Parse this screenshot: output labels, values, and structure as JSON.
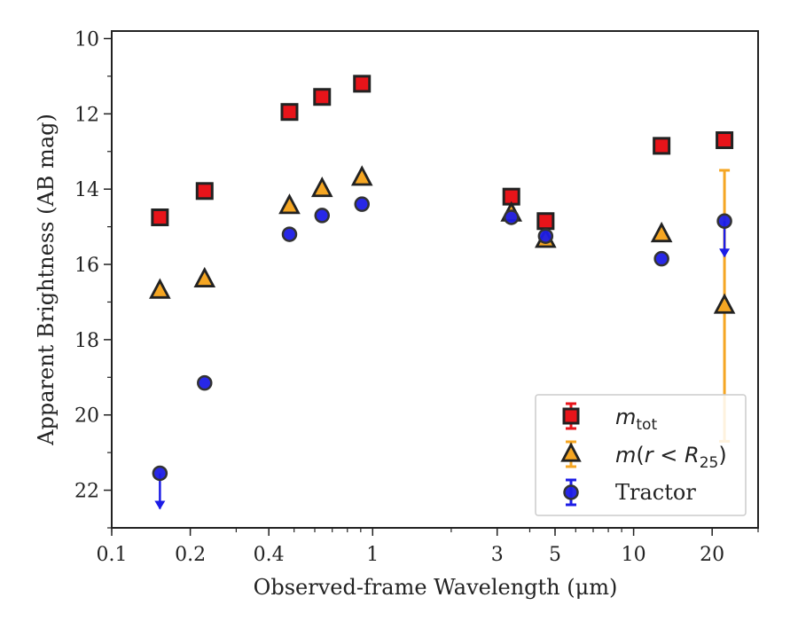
{
  "chart_data": {
    "type": "scatter",
    "xlabel": "Observed-frame Wavelength (μm)",
    "ylabel": "Apparent Brightness (AB mag)",
    "xscale": "log",
    "xlim": [
      0.1,
      30
    ],
    "ylim": [
      23,
      9.8
    ],
    "y_inverted": true,
    "grid": false,
    "legend_position": "lower-right",
    "x_ticks": [
      0.1,
      0.2,
      0.4,
      1,
      3,
      5,
      10,
      20
    ],
    "x_tick_labels": [
      "0.1",
      "0.2",
      "0.4",
      "1",
      "3",
      "5",
      "10",
      "20"
    ],
    "y_ticks": [
      10,
      12,
      14,
      16,
      18,
      20,
      22
    ],
    "y_tick_labels": [
      "10",
      "12",
      "14",
      "16",
      "18",
      "20",
      "22"
    ],
    "series": [
      {
        "name": "m_tot",
        "legend_main": "m",
        "legend_sub": "tot",
        "marker": "square",
        "color": "#e8141a",
        "edge_color": "#222222",
        "x": [
          0.153,
          0.227,
          0.48,
          0.64,
          0.91,
          3.4,
          4.6,
          12.8,
          22.3
        ],
        "y": [
          14.75,
          14.05,
          11.95,
          11.55,
          11.2,
          14.2,
          14.85,
          12.85,
          12.7
        ]
      },
      {
        "name": "m(r < R25)",
        "legend_parts": [
          "m",
          "(",
          "r",
          " < ",
          "R",
          "25",
          ")"
        ],
        "marker": "triangle",
        "color": "#f5a623",
        "edge_color": "#222222",
        "x": [
          0.153,
          0.227,
          0.48,
          0.64,
          0.91,
          3.4,
          4.6,
          12.8,
          22.3
        ],
        "y": [
          16.7,
          16.4,
          14.45,
          14.0,
          13.7,
          14.65,
          15.35,
          15.2,
          17.1
        ],
        "yerr_upper": [
          0,
          0,
          0,
          0,
          0,
          0,
          0,
          0,
          3.6
        ],
        "yerr_lower": [
          0,
          0,
          0,
          0,
          0,
          0,
          0,
          0,
          3.6
        ]
      },
      {
        "name": "Tractor",
        "marker": "circle",
        "color": "#1c1ce6",
        "edge_color": "#333333",
        "x": [
          0.153,
          0.227,
          0.48,
          0.64,
          0.91,
          3.4,
          4.6,
          12.8,
          22.3
        ],
        "y": [
          21.55,
          19.15,
          15.2,
          14.7,
          14.4,
          14.75,
          15.25,
          15.85,
          14.85
        ],
        "upper_limit": [
          true,
          false,
          false,
          false,
          false,
          false,
          false,
          false,
          true
        ]
      }
    ]
  }
}
